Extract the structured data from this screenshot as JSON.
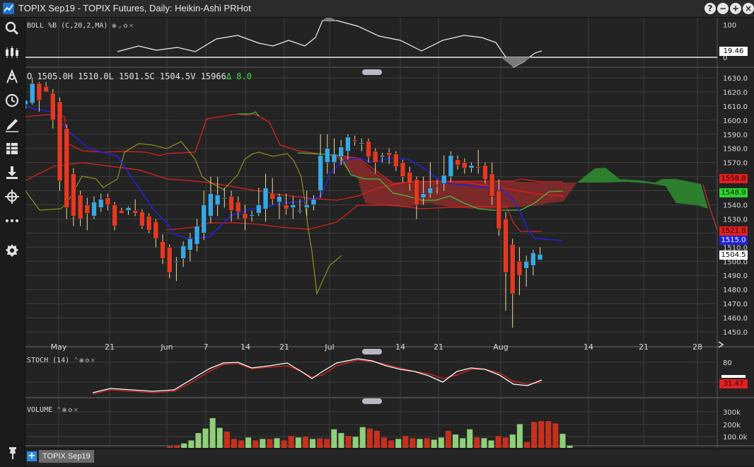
{
  "window": {
    "title": "TOPIX Sep19 - TOPIX Futures, Daily: Heikin-Ashi PRHot",
    "buttons": [
      "?",
      "−",
      "+",
      "×"
    ]
  },
  "toolbar": {
    "tools": [
      "search-icon",
      "chart-type-icon",
      "indicator-icon",
      "clock-icon",
      "draw-icon",
      "layout-icon",
      "download-icon",
      "crosshair-icon",
      "more-icon",
      "settings-icon"
    ]
  },
  "panels": {
    "boll": {
      "label": "BOLL %B (C,20,2,MA)",
      "value_tag": "19.46"
    },
    "main": {
      "ohlc": {
        "open": "O 1505.0H",
        "high": "1510.0L",
        "low": "1501.5C",
        "close": "1504.5V",
        "volume": "15966",
        "change": "Δ 8.0"
      }
    },
    "stoch": {
      "label": "STOCH (14)",
      "value_tag": "31.47"
    },
    "volume": {
      "label": "VOLUME"
    }
  },
  "colors": {
    "up": "#3aa7e0",
    "down": "#e23a22",
    "ma_blue": "#2222dd",
    "ichimoku_red": "#e02020",
    "ichimoku_green": "#40c040",
    "lagging": "#9a9a20",
    "cloud_red": "#8b2a2a",
    "cloud_green": "#2f8a2f",
    "stoch_k": "#ffffff",
    "stoch_d": "#e02020",
    "vol_up": "#8fcf7a",
    "vol_down": "#c8301e"
  },
  "chart_data": {
    "type": "candlestick",
    "price_axis": {
      "ticks": [
        1630,
        1620,
        1610,
        1600,
        1590,
        1580,
        1570,
        1560,
        1550,
        1540,
        1530,
        1520,
        1510,
        1500,
        1490,
        1480,
        1470,
        1460,
        1450
      ],
      "range": [
        1446,
        1634
      ]
    },
    "time_axis": [
      "May",
      "21",
      "Jun",
      "7",
      "14",
      "21",
      "Jul",
      "14",
      "21",
      "Aug",
      "14",
      "21",
      "28"
    ],
    "price_tags": [
      {
        "value": "1558.8",
        "color": "#e02020",
        "text_color": "#2b0000",
        "price": 1558.8
      },
      {
        "value": "1548.9",
        "color": "#30d030",
        "text_color": "#002b00",
        "price": 1548.9
      },
      {
        "value": "1521.8",
        "color": "#e02020",
        "text_color": "#2b0000",
        "price": 1521.8
      },
      {
        "value": "1515.0",
        "color": "#2222dd",
        "text_color": "#ffffff",
        "price": 1515.0
      },
      {
        "value": "1504.5",
        "color": "#ffffff",
        "text_color": "#000000",
        "price": 1504.5
      }
    ],
    "candles": [
      {
        "o": 1611,
        "h": 1614,
        "l": 1608,
        "c": 1614
      },
      {
        "o": 1612,
        "h": 1630,
        "l": 1611,
        "c": 1626
      },
      {
        "o": 1626,
        "h": 1627,
        "l": 1606,
        "c": 1614
      },
      {
        "o": 1624,
        "h": 1627,
        "l": 1620,
        "c": 1620
      },
      {
        "o": 1619,
        "h": 1622,
        "l": 1594,
        "c": 1600
      },
      {
        "o": 1613,
        "h": 1616,
        "l": 1550,
        "c": 1557
      },
      {
        "o": 1594,
        "h": 1597,
        "l": 1530,
        "c": 1538
      },
      {
        "o": 1562,
        "h": 1566,
        "l": 1525,
        "c": 1532
      },
      {
        "o": 1547,
        "h": 1550,
        "l": 1525,
        "c": 1530
      },
      {
        "o": 1540,
        "h": 1545,
        "l": 1522,
        "c": 1534
      },
      {
        "o": 1532,
        "h": 1546,
        "l": 1530,
        "c": 1542
      },
      {
        "o": 1538,
        "h": 1548,
        "l": 1535,
        "c": 1544
      },
      {
        "o": 1545,
        "h": 1548,
        "l": 1536,
        "c": 1540
      },
      {
        "o": 1540,
        "h": 1542,
        "l": 1522,
        "c": 1525
      },
      {
        "o": 1536,
        "h": 1538,
        "l": 1534,
        "c": 1534
      },
      {
        "o": 1536,
        "h": 1539,
        "l": 1533,
        "c": 1538
      },
      {
        "o": 1536,
        "h": 1544,
        "l": 1532,
        "c": 1534
      },
      {
        "o": 1535,
        "h": 1537,
        "l": 1523,
        "c": 1525
      },
      {
        "o": 1532,
        "h": 1534,
        "l": 1520,
        "c": 1522
      },
      {
        "o": 1528,
        "h": 1530,
        "l": 1510,
        "c": 1516
      },
      {
        "o": 1514,
        "h": 1519,
        "l": 1498,
        "c": 1502
      },
      {
        "o": 1510,
        "h": 1512,
        "l": 1488,
        "c": 1492
      },
      {
        "o": 1500,
        "h": 1503,
        "l": 1486,
        "c": 1500
      },
      {
        "o": 1502,
        "h": 1514,
        "l": 1496,
        "c": 1511
      },
      {
        "o": 1508,
        "h": 1520,
        "l": 1500,
        "c": 1516
      },
      {
        "o": 1512,
        "h": 1530,
        "l": 1507,
        "c": 1525
      },
      {
        "o": 1520,
        "h": 1550,
        "l": 1515,
        "c": 1540
      },
      {
        "o": 1532,
        "h": 1560,
        "l": 1527,
        "c": 1548
      },
      {
        "o": 1540,
        "h": 1560,
        "l": 1532,
        "c": 1547
      },
      {
        "o": 1545,
        "h": 1552,
        "l": 1538,
        "c": 1545
      },
      {
        "o": 1546,
        "h": 1550,
        "l": 1528,
        "c": 1536
      },
      {
        "o": 1542,
        "h": 1546,
        "l": 1530,
        "c": 1535
      },
      {
        "o": 1534,
        "h": 1540,
        "l": 1522,
        "c": 1530
      },
      {
        "o": 1532,
        "h": 1536,
        "l": 1528,
        "c": 1533
      },
      {
        "o": 1534,
        "h": 1552,
        "l": 1532,
        "c": 1540
      },
      {
        "o": 1537,
        "h": 1562,
        "l": 1528,
        "c": 1552
      },
      {
        "o": 1548,
        "h": 1559,
        "l": 1540,
        "c": 1544
      },
      {
        "o": 1542,
        "h": 1548,
        "l": 1530,
        "c": 1546
      },
      {
        "o": 1540,
        "h": 1548,
        "l": 1533,
        "c": 1537
      },
      {
        "o": 1538,
        "h": 1546,
        "l": 1530,
        "c": 1540
      },
      {
        "o": 1536,
        "h": 1544,
        "l": 1534,
        "c": 1536
      },
      {
        "o": 1538,
        "h": 1550,
        "l": 1532,
        "c": 1540
      },
      {
        "o": 1540,
        "h": 1547,
        "l": 1536,
        "c": 1544
      },
      {
        "o": 1550,
        "h": 1590,
        "l": 1545,
        "c": 1575
      },
      {
        "o": 1570,
        "h": 1590,
        "l": 1562,
        "c": 1580
      },
      {
        "o": 1570,
        "h": 1587,
        "l": 1562,
        "c": 1576
      },
      {
        "o": 1574,
        "h": 1586,
        "l": 1568,
        "c": 1581
      },
      {
        "o": 1578,
        "h": 1590,
        "l": 1572,
        "c": 1588
      },
      {
        "o": 1586,
        "h": 1589,
        "l": 1582,
        "c": 1585
      },
      {
        "o": 1584,
        "h": 1587,
        "l": 1578,
        "c": 1584
      },
      {
        "o": 1585,
        "h": 1587,
        "l": 1570,
        "c": 1574
      },
      {
        "o": 1578,
        "h": 1580,
        "l": 1562,
        "c": 1570
      },
      {
        "o": 1574,
        "h": 1577,
        "l": 1570,
        "c": 1575
      },
      {
        "o": 1577,
        "h": 1580,
        "l": 1569,
        "c": 1575
      },
      {
        "o": 1576,
        "h": 1578,
        "l": 1564,
        "c": 1567
      },
      {
        "o": 1570,
        "h": 1572,
        "l": 1556,
        "c": 1560
      },
      {
        "o": 1563,
        "h": 1567,
        "l": 1550,
        "c": 1555
      },
      {
        "o": 1558,
        "h": 1560,
        "l": 1530,
        "c": 1540
      },
      {
        "o": 1545,
        "h": 1560,
        "l": 1540,
        "c": 1548
      },
      {
        "o": 1548,
        "h": 1570,
        "l": 1545,
        "c": 1552
      },
      {
        "o": 1554,
        "h": 1558,
        "l": 1548,
        "c": 1553
      },
      {
        "o": 1555,
        "h": 1575,
        "l": 1550,
        "c": 1561
      },
      {
        "o": 1560,
        "h": 1578,
        "l": 1556,
        "c": 1575
      },
      {
        "o": 1572,
        "h": 1575,
        "l": 1565,
        "c": 1568
      },
      {
        "o": 1570,
        "h": 1573,
        "l": 1562,
        "c": 1566
      },
      {
        "o": 1566,
        "h": 1570,
        "l": 1563,
        "c": 1568
      },
      {
        "o": 1567,
        "h": 1579,
        "l": 1562,
        "c": 1566
      },
      {
        "o": 1568,
        "h": 1570,
        "l": 1555,
        "c": 1558
      },
      {
        "o": 1562,
        "h": 1570,
        "l": 1540,
        "c": 1546
      },
      {
        "o": 1550,
        "h": 1558,
        "l": 1518,
        "c": 1523
      },
      {
        "o": 1530,
        "h": 1535,
        "l": 1465,
        "c": 1492
      },
      {
        "o": 1512,
        "h": 1516,
        "l": 1453,
        "c": 1477
      },
      {
        "o": 1500,
        "h": 1510,
        "l": 1476,
        "c": 1490
      },
      {
        "o": 1495,
        "h": 1504,
        "l": 1482,
        "c": 1500
      },
      {
        "o": 1497,
        "h": 1508,
        "l": 1490,
        "c": 1506
      },
      {
        "o": 1501,
        "h": 1510,
        "l": 1501,
        "c": 1505
      }
    ]
  }
}
